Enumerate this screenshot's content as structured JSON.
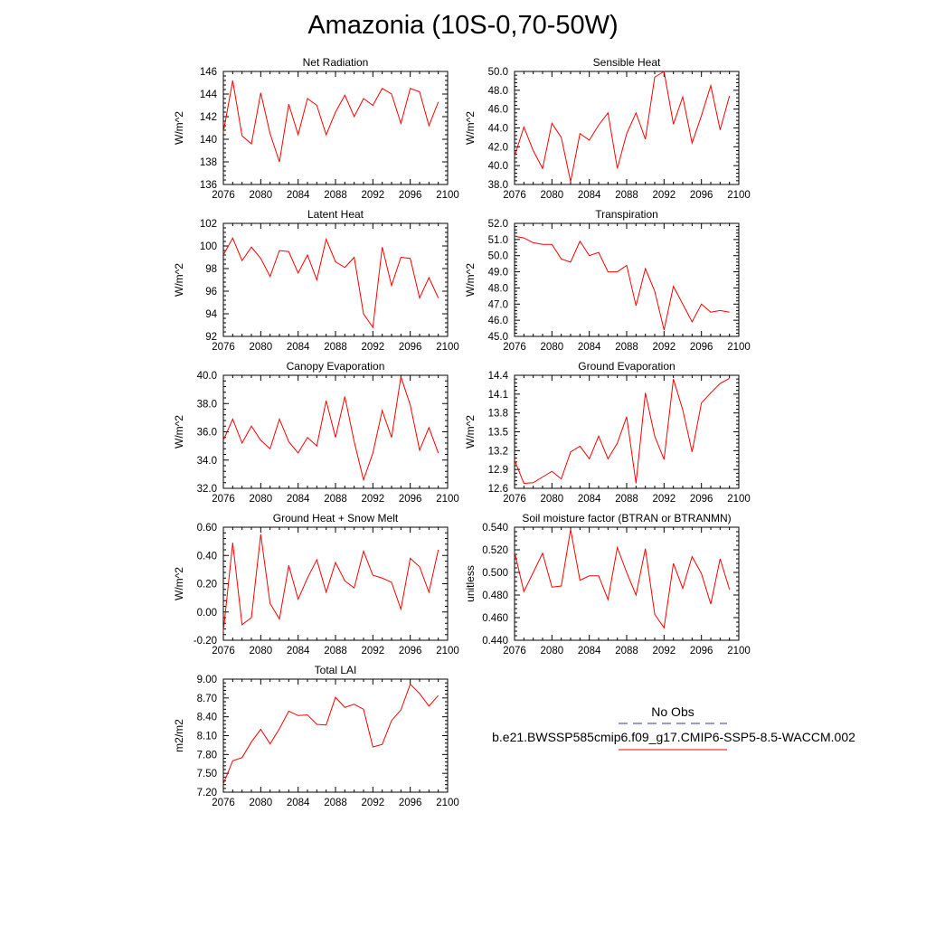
{
  "title": "Amazonia (10S-0,70-50W)",
  "legend": {
    "obs_label": "No Obs",
    "model_label": "b.e21.BWSSP585cmip6.f09_g17.CMIP6-SSP5-8.5-WACCM.002",
    "obs_color": "#3333aa",
    "model_color": "#ff0000"
  },
  "chart_data": [
    {
      "type": "line",
      "title": "Net Radiation",
      "ylabel": "W/m^2",
      "x_ticks": [
        "2076",
        "2080",
        "2084",
        "2088",
        "2092",
        "2096",
        "2100"
      ],
      "y_ticks": [
        "136",
        "138",
        "140",
        "142",
        "144",
        "146"
      ],
      "xlim": [
        2076,
        2100
      ],
      "ylim": [
        136,
        146
      ],
      "color": "#ff0000",
      "x": [
        2076,
        2077,
        2078,
        2079,
        2080,
        2081,
        2082,
        2083,
        2084,
        2085,
        2086,
        2087,
        2088,
        2089,
        2090,
        2091,
        2092,
        2093,
        2094,
        2095,
        2096,
        2097,
        2098,
        2099
      ],
      "values": [
        140.6,
        145.2,
        140.3,
        139.6,
        144.1,
        140.5,
        138.0,
        143.1,
        140.4,
        143.6,
        143.0,
        140.4,
        142.4,
        143.9,
        142.0,
        143.6,
        143.0,
        144.5,
        144.0,
        141.4,
        144.5,
        144.2,
        141.2,
        143.3
      ]
    },
    {
      "type": "line",
      "title": "Sensible Heat",
      "ylabel": "W/m^2",
      "x_ticks": [
        "2076",
        "2080",
        "2084",
        "2088",
        "2092",
        "2096",
        "2100"
      ],
      "y_ticks": [
        "38.0",
        "40.0",
        "42.0",
        "44.0",
        "46.0",
        "48.0",
        "50.0"
      ],
      "xlim": [
        2076,
        2100
      ],
      "ylim": [
        38,
        50
      ],
      "color": "#ff0000",
      "x": [
        2076,
        2077,
        2078,
        2079,
        2080,
        2081,
        2082,
        2083,
        2084,
        2085,
        2086,
        2087,
        2088,
        2089,
        2090,
        2091,
        2092,
        2093,
        2094,
        2095,
        2096,
        2097,
        2098,
        2099
      ],
      "values": [
        41.0,
        44.1,
        41.6,
        39.7,
        44.5,
        43.0,
        38.3,
        43.4,
        42.7,
        44.3,
        45.6,
        39.7,
        43.4,
        45.6,
        42.8,
        49.4,
        50.0,
        44.4,
        47.3,
        42.4,
        45.3,
        48.5,
        43.8,
        47.4
      ]
    },
    {
      "type": "line",
      "title": "Latent Heat",
      "ylabel": "W/m^2",
      "x_ticks": [
        "2076",
        "2080",
        "2084",
        "2088",
        "2092",
        "2096",
        "2100"
      ],
      "y_ticks": [
        "92",
        "94",
        "96",
        "98",
        "100",
        "102"
      ],
      "xlim": [
        2076,
        2100
      ],
      "ylim": [
        92,
        102
      ],
      "color": "#ff0000",
      "x": [
        2076,
        2077,
        2078,
        2079,
        2080,
        2081,
        2082,
        2083,
        2084,
        2085,
        2086,
        2087,
        2088,
        2089,
        2090,
        2091,
        2092,
        2093,
        2094,
        2095,
        2096,
        2097,
        2098,
        2099
      ],
      "values": [
        99.2,
        100.7,
        98.7,
        99.9,
        98.9,
        97.3,
        99.6,
        99.5,
        97.6,
        99.2,
        97.0,
        100.6,
        98.6,
        98.1,
        99.0,
        94.0,
        92.8,
        99.9,
        96.5,
        99.0,
        98.9,
        95.4,
        97.2,
        95.4
      ]
    },
    {
      "type": "line",
      "title": "Transpiration",
      "ylabel": "W/m^2",
      "x_ticks": [
        "2076",
        "2080",
        "2084",
        "2088",
        "2092",
        "2096",
        "2100"
      ],
      "y_ticks": [
        "45.0",
        "46.0",
        "47.0",
        "48.0",
        "49.0",
        "50.0",
        "51.0",
        "52.0"
      ],
      "xlim": [
        2076,
        2100
      ],
      "ylim": [
        45,
        52
      ],
      "color": "#ff0000",
      "x": [
        2076,
        2077,
        2078,
        2079,
        2080,
        2081,
        2082,
        2083,
        2084,
        2085,
        2086,
        2087,
        2088,
        2089,
        2090,
        2091,
        2092,
        2093,
        2094,
        2095,
        2096,
        2097,
        2098,
        2099
      ],
      "values": [
        51.2,
        51.1,
        50.8,
        50.7,
        50.7,
        49.8,
        49.6,
        50.9,
        50.0,
        50.2,
        49.0,
        49.0,
        49.4,
        46.9,
        49.2,
        47.8,
        45.4,
        48.1,
        47.0,
        45.9,
        47.0,
        46.5,
        46.6,
        46.5
      ]
    },
    {
      "type": "line",
      "title": "Canopy Evaporation",
      "ylabel": "W/m^2",
      "x_ticks": [
        "2076",
        "2080",
        "2084",
        "2088",
        "2092",
        "2096",
        "2100"
      ],
      "y_ticks": [
        "32.0",
        "34.0",
        "36.0",
        "38.0",
        "40.0"
      ],
      "xlim": [
        2076,
        2100
      ],
      "ylim": [
        32,
        40
      ],
      "color": "#ff0000",
      "x": [
        2076,
        2077,
        2078,
        2079,
        2080,
        2081,
        2082,
        2083,
        2084,
        2085,
        2086,
        2087,
        2088,
        2089,
        2090,
        2091,
        2092,
        2093,
        2094,
        2095,
        2096,
        2097,
        2098,
        2099
      ],
      "values": [
        35.4,
        36.9,
        35.2,
        36.4,
        35.4,
        34.8,
        36.9,
        35.3,
        34.5,
        35.6,
        35.0,
        38.2,
        35.6,
        38.5,
        35.3,
        32.6,
        34.5,
        37.5,
        35.6,
        39.9,
        37.9,
        34.7,
        36.3,
        34.5
      ]
    },
    {
      "type": "line",
      "title": "Ground Evaporation",
      "ylabel": "W/m^2",
      "x_ticks": [
        "2076",
        "2080",
        "2084",
        "2088",
        "2092",
        "2096",
        "2100"
      ],
      "y_ticks": [
        "12.6",
        "12.9",
        "13.2",
        "13.5",
        "13.8",
        "14.1",
        "14.4"
      ],
      "xlim": [
        2076,
        2100
      ],
      "ylim": [
        12.6,
        14.4
      ],
      "color": "#ff0000",
      "x": [
        2076,
        2077,
        2078,
        2079,
        2080,
        2081,
        2082,
        2083,
        2084,
        2085,
        2086,
        2087,
        2088,
        2089,
        2090,
        2091,
        2092,
        2093,
        2094,
        2095,
        2096,
        2097,
        2098,
        2099
      ],
      "values": [
        13.05,
        12.68,
        12.69,
        12.78,
        12.87,
        12.75,
        13.18,
        13.27,
        13.07,
        13.43,
        13.07,
        13.32,
        13.74,
        12.68,
        14.12,
        13.43,
        13.06,
        14.34,
        13.85,
        13.18,
        13.96,
        14.12,
        14.27,
        14.35
      ]
    },
    {
      "type": "line",
      "title": "Ground Heat + Snow Melt",
      "ylabel": "W/m^2",
      "x_ticks": [
        "2076",
        "2080",
        "2084",
        "2088",
        "2092",
        "2096",
        "2100"
      ],
      "y_ticks": [
        "-0.20",
        "0.00",
        "0.20",
        "0.40",
        "0.60"
      ],
      "xlim": [
        2076,
        2100
      ],
      "ylim": [
        -0.2,
        0.6
      ],
      "color": "#ff0000",
      "x": [
        2076,
        2077,
        2078,
        2079,
        2080,
        2081,
        2082,
        2083,
        2084,
        2085,
        2086,
        2087,
        2088,
        2089,
        2090,
        2091,
        2092,
        2093,
        2094,
        2095,
        2096,
        2097,
        2098,
        2099
      ],
      "values": [
        -0.14,
        0.49,
        -0.09,
        -0.04,
        0.55,
        0.06,
        -0.05,
        0.33,
        0.09,
        0.24,
        0.37,
        0.14,
        0.35,
        0.22,
        0.17,
        0.43,
        0.26,
        0.24,
        0.21,
        0.02,
        0.38,
        0.32,
        0.14,
        0.44
      ]
    },
    {
      "type": "line",
      "title": "Soil moisture factor (BTRAN or BTRANMN)",
      "ylabel": "unitless",
      "x_ticks": [
        "2076",
        "2080",
        "2084",
        "2088",
        "2092",
        "2096",
        "2100"
      ],
      "y_ticks": [
        "0.440",
        "0.460",
        "0.480",
        "0.500",
        "0.520",
        "0.540"
      ],
      "xlim": [
        2076,
        2100
      ],
      "ylim": [
        0.44,
        0.54
      ],
      "color": "#ff0000",
      "x": [
        2076,
        2077,
        2078,
        2079,
        2080,
        2081,
        2082,
        2083,
        2084,
        2085,
        2086,
        2087,
        2088,
        2089,
        2090,
        2091,
        2092,
        2093,
        2094,
        2095,
        2096,
        2097,
        2098,
        2099
      ],
      "values": [
        0.518,
        0.483,
        0.5,
        0.517,
        0.487,
        0.488,
        0.538,
        0.493,
        0.497,
        0.497,
        0.476,
        0.522,
        0.5,
        0.48,
        0.521,
        0.463,
        0.451,
        0.508,
        0.486,
        0.514,
        0.499,
        0.472,
        0.512,
        0.485
      ]
    },
    {
      "type": "line",
      "title": "Total LAI",
      "ylabel": "m2/m2",
      "x_ticks": [
        "2076",
        "2080",
        "2084",
        "2088",
        "2092",
        "2096",
        "2100"
      ],
      "y_ticks": [
        "7.20",
        "7.50",
        "7.80",
        "8.10",
        "8.40",
        "8.70",
        "9.00"
      ],
      "xlim": [
        2076,
        2100
      ],
      "ylim": [
        7.2,
        9.0
      ],
      "color": "#ff0000",
      "x": [
        2076,
        2077,
        2078,
        2079,
        2080,
        2081,
        2082,
        2083,
        2084,
        2085,
        2086,
        2087,
        2088,
        2089,
        2090,
        2091,
        2092,
        2093,
        2094,
        2095,
        2096,
        2097,
        2098,
        2099
      ],
      "values": [
        7.33,
        7.7,
        7.75,
        8.0,
        8.2,
        7.97,
        8.21,
        8.49,
        8.42,
        8.43,
        8.28,
        8.27,
        8.71,
        8.55,
        8.6,
        8.52,
        7.92,
        7.96,
        8.34,
        8.51,
        8.92,
        8.77,
        8.57,
        8.74
      ]
    }
  ]
}
